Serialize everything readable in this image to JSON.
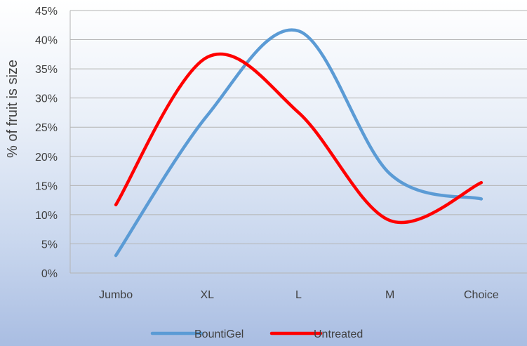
{
  "chart_data": {
    "type": "line",
    "title": "",
    "xlabel": "",
    "ylabel": "% of fruit is size",
    "categories": [
      "Jumbo",
      "XL",
      "L",
      "M",
      "Choice"
    ],
    "y_ticks": [
      "0%",
      "5%",
      "10%",
      "15%",
      "20%",
      "25%",
      "30%",
      "35%",
      "40%",
      "45%"
    ],
    "ylim": [
      0,
      45
    ],
    "grid": true,
    "smooth": true,
    "legend_position": "bottom",
    "series": [
      {
        "name": "BountiGel",
        "color": "#5b9bd5",
        "values": [
          3,
          27,
          41.5,
          17,
          12.7
        ]
      },
      {
        "name": "Untreated",
        "color": "#ff0000",
        "values": [
          11.7,
          37,
          27.5,
          9,
          15.5
        ]
      }
    ]
  }
}
